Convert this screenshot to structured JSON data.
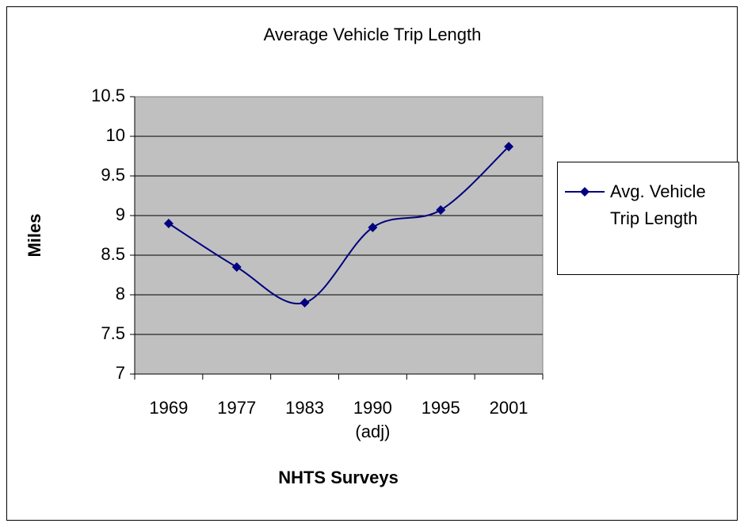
{
  "chart_data": {
    "type": "line",
    "title": "Average Vehicle Trip Length",
    "x_label": "NHTS Surveys",
    "y_label": "Miles",
    "categories": [
      "1969",
      "1977",
      "1983",
      "1990 (adj)",
      "1995",
      "2001"
    ],
    "series": [
      {
        "name": "Avg. Vehicle Trip Length",
        "color": "#000080",
        "values": [
          8.9,
          8.35,
          7.9,
          8.85,
          9.07,
          9.87
        ]
      }
    ],
    "ylim": [
      7,
      10.5
    ],
    "yticks": [
      7,
      7.5,
      8,
      8.5,
      9,
      9.5,
      10,
      10.5
    ],
    "grid": true,
    "smooth": true,
    "legend": "right"
  }
}
